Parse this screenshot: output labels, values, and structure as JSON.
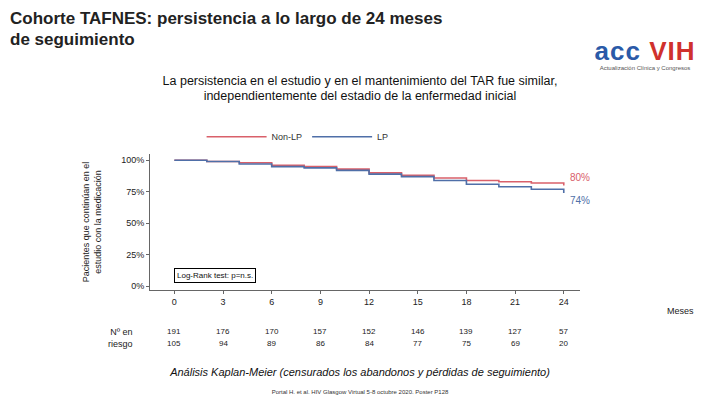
{
  "chart_data": {
    "type": "line",
    "title": [
      "Cohorte TAFNES: persistencia a lo largo de 24 meses",
      "de seguimiento"
    ],
    "subtitle": [
      "La persistencia en el estudio y en el mantenimiento del TAR fue similar,",
      "independientemente del estadio de la enfermedad inicial"
    ],
    "x_label": "Meses",
    "y_label": [
      "Pacientes que continúan en el",
      "estudio con la medicación"
    ],
    "x": [
      0,
      2,
      4,
      6,
      8,
      10,
      12,
      14,
      16,
      18,
      20,
      22,
      24
    ],
    "series": [
      {
        "name": "Non-LP",
        "color": "#d9606a",
        "values": [
          100,
          99,
          98,
          96,
          95,
          93,
          90,
          88,
          86,
          84,
          83,
          82,
          80
        ],
        "value_labels": [
          null,
          null,
          null,
          null,
          null,
          null,
          null,
          null,
          null,
          null,
          null,
          null,
          "80%"
        ]
      },
      {
        "name": "LP",
        "color": "#4f6fa8",
        "values": [
          100,
          99,
          97,
          95,
          94,
          92,
          89,
          87,
          84,
          81,
          79,
          77,
          74
        ],
        "value_labels": [
          null,
          null,
          null,
          null,
          null,
          null,
          null,
          null,
          null,
          null,
          null,
          null,
          "74%"
        ]
      }
    ],
    "xlim": [
      -1.5,
      25
    ],
    "xticks": [
      0,
      3,
      6,
      9,
      12,
      15,
      18,
      21,
      24
    ],
    "ylim": [
      -3,
      105
    ],
    "yticks": [
      {
        "value": 0,
        "label": "0%"
      },
      {
        "value": 25,
        "label": "25%"
      },
      {
        "value": 50,
        "label": "50%"
      },
      {
        "value": 75,
        "label": "75%"
      },
      {
        "value": 100,
        "label": "100%"
      }
    ],
    "grid": false,
    "legend": "top",
    "annotations": [
      "Log-Rank test: p=n.s."
    ],
    "at_risk": {
      "label": [
        "Nº en",
        "riesgo"
      ],
      "series": [
        {
          "name": "Non-LP",
          "values": [
            191,
            176,
            170,
            157,
            152,
            146,
            139,
            127,
            57
          ]
        },
        {
          "name": "LP",
          "values": [
            105,
            94,
            89,
            86,
            84,
            77,
            75,
            69,
            20
          ]
        }
      ]
    },
    "caption": "Análisis Kaplan-Meier (censurados los abandonos y pérdidas de seguimiento)",
    "source": "Portal H. et al. HIV Glasgow Virtual 5-8 octubre 2020. Poster P128"
  },
  "logo": {
    "text": "acc",
    "accent": "VIH",
    "tagline": "Actualización Clínica y Congresos"
  }
}
